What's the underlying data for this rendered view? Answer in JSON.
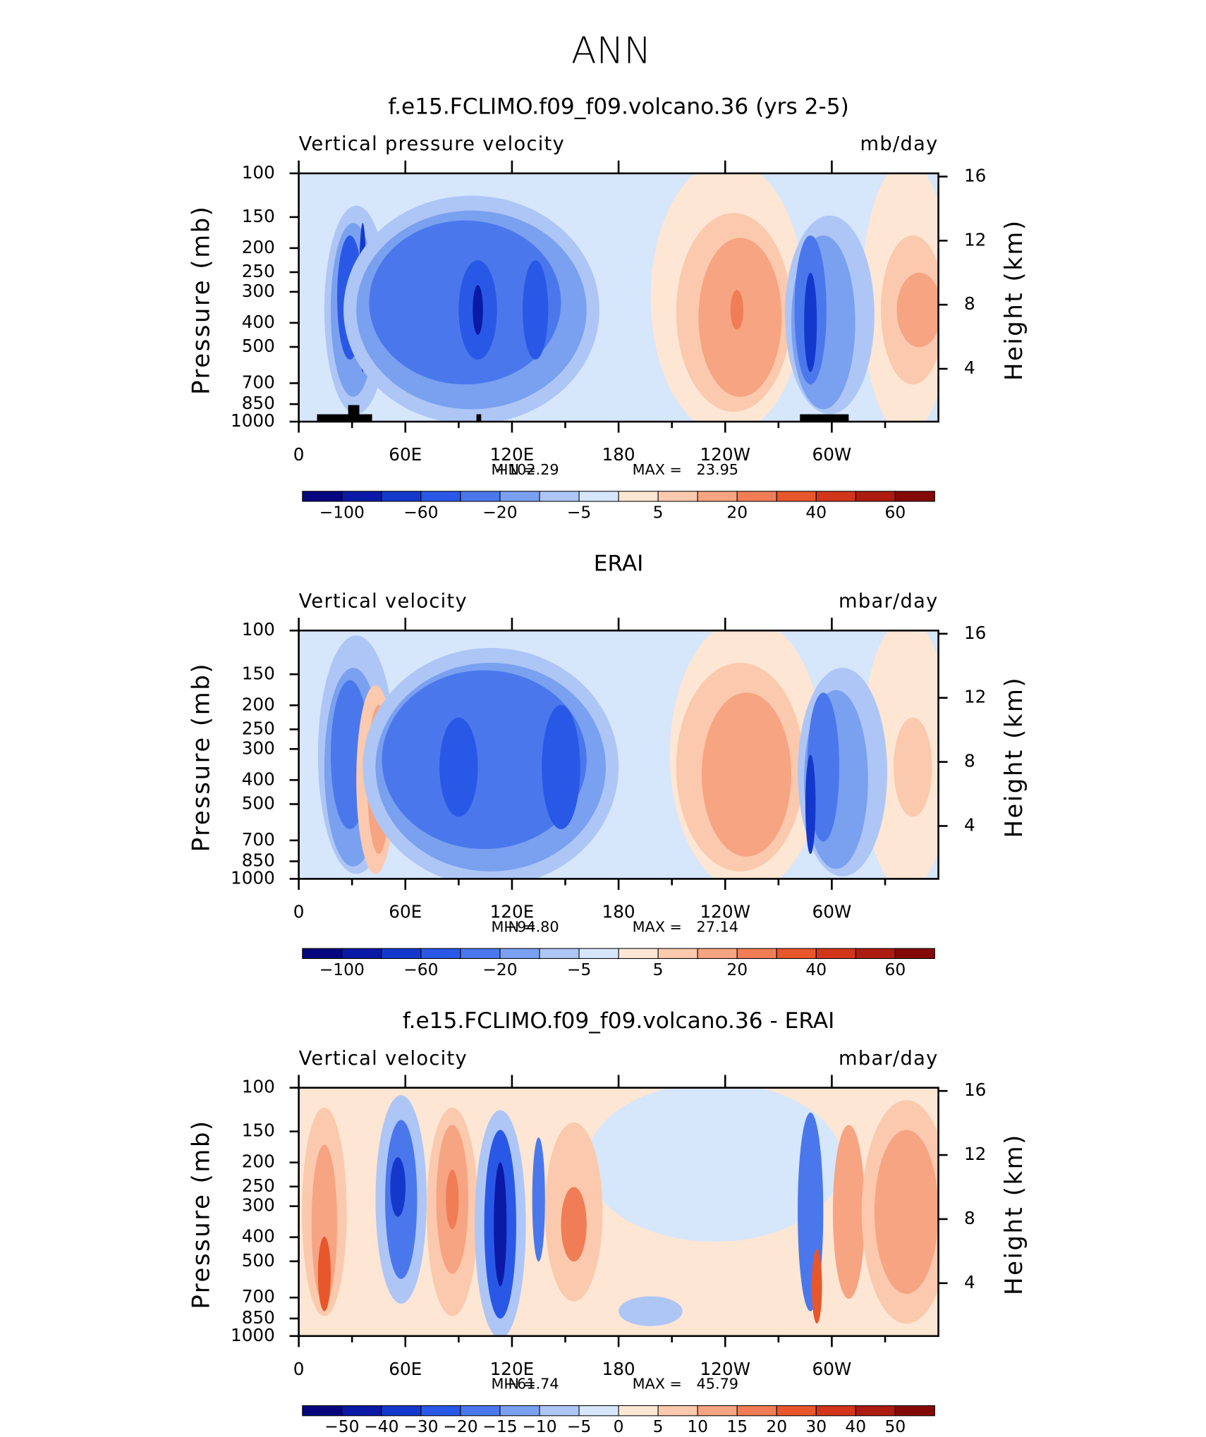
{
  "title": "ANN",
  "chart_data": [
    {
      "type": "contour",
      "title": "f.e15.FCLIMO.f09_f09.volcano.36 (yrs 2-5)",
      "subtitle_left": "Vertical pressure velocity",
      "subtitle_right": "mb/day",
      "ylabel": "Pressure (mb)",
      "y2label": "Height (km)",
      "xlim": [
        0,
        360
      ],
      "xticks": [
        0,
        {
          "value": 60,
          "label": "60E"
        },
        {
          "value": 120,
          "label": "120E"
        },
        180,
        {
          "value": 240,
          "label": "120W"
        },
        {
          "value": 300,
          "label": "60W"
        }
      ],
      "ylim": [
        1000,
        100
      ],
      "yscale": "log",
      "yticks": [
        100,
        150,
        200,
        250,
        300,
        400,
        500,
        700,
        850,
        1000
      ],
      "y2lim": [
        0.7,
        16.2
      ],
      "y2ticks": [
        16,
        12,
        8,
        4
      ],
      "stats_labels": [
        "MIN =",
        "MAX ="
      ],
      "min": {
        "value": -102.29,
        "label": "−102.29"
      },
      "max": 23.95,
      "colorbar": {
        "colors": [
          "#06067e",
          "#0a1aa6",
          "#1538cc",
          "#2a58e6",
          "#4a78ec",
          "#7aa0f0",
          "#aec6f6",
          "#d6e6fb",
          "#fde6d4",
          "#fbc9ad",
          "#f6a482",
          "#f07d56",
          "#e8562c",
          "#d2361a",
          "#ac1c10",
          "#840808"
        ],
        "ticks": [
          {
            "value": -100,
            "label": "−100"
          },
          null,
          {
            "value": -60,
            "label": "−60"
          },
          null,
          {
            "value": -20,
            "label": "−20"
          },
          null,
          {
            "value": -5,
            "label": "−5"
          },
          null,
          5,
          null,
          20,
          null,
          40,
          null,
          60
        ]
      }
    },
    {
      "type": "contour",
      "title": "ERAI",
      "subtitle_left": "Vertical velocity",
      "subtitle_right": "mbar/day",
      "ylabel": "Pressure (mb)",
      "y2label": "Height (km)",
      "xlim": [
        0,
        360
      ],
      "xticks": [
        0,
        {
          "value": 60,
          "label": "60E"
        },
        {
          "value": 120,
          "label": "120E"
        },
        180,
        {
          "value": 240,
          "label": "120W"
        },
        {
          "value": 300,
          "label": "60W"
        }
      ],
      "ylim": [
        1000,
        100
      ],
      "yscale": "log",
      "yticks": [
        100,
        150,
        200,
        250,
        300,
        400,
        500,
        700,
        850,
        1000
      ],
      "y2lim": [
        0.7,
        16.2
      ],
      "y2ticks": [
        16,
        12,
        8,
        4
      ],
      "stats_labels": [
        "MIN =",
        "MAX ="
      ],
      "min": {
        "value": -94.8,
        "label": "−94.80"
      },
      "max": 27.14,
      "colorbar": {
        "colors": [
          "#06067e",
          "#0a1aa6",
          "#1538cc",
          "#2a58e6",
          "#4a78ec",
          "#7aa0f0",
          "#aec6f6",
          "#d6e6fb",
          "#fde6d4",
          "#fbc9ad",
          "#f6a482",
          "#f07d56",
          "#e8562c",
          "#d2361a",
          "#ac1c10",
          "#840808"
        ],
        "ticks": [
          {
            "value": -100,
            "label": "−100"
          },
          null,
          {
            "value": -60,
            "label": "−60"
          },
          null,
          {
            "value": -20,
            "label": "−20"
          },
          null,
          {
            "value": -5,
            "label": "−5"
          },
          null,
          5,
          null,
          20,
          null,
          40,
          null,
          60
        ]
      }
    },
    {
      "type": "contour",
      "title": "f.e15.FCLIMO.f09_f09.volcano.36 - ERAI",
      "subtitle_left": "Vertical velocity",
      "subtitle_right": "mbar/day",
      "ylabel": "Pressure (mb)",
      "y2label": "Height (km)",
      "xlim": [
        0,
        360
      ],
      "xticks": [
        0,
        {
          "value": 60,
          "label": "60E"
        },
        {
          "value": 120,
          "label": "120E"
        },
        180,
        {
          "value": 240,
          "label": "120W"
        },
        {
          "value": 300,
          "label": "60W"
        }
      ],
      "ylim": [
        1000,
        100
      ],
      "yscale": "log",
      "yticks": [
        100,
        150,
        200,
        250,
        300,
        400,
        500,
        700,
        850,
        1000
      ],
      "y2lim": [
        0.7,
        16.2
      ],
      "y2ticks": [
        16,
        12,
        8,
        4
      ],
      "stats_labels": [
        "MIN =",
        "MAX ="
      ],
      "min": {
        "value": -61.74,
        "label": "−61.74"
      },
      "max": 45.79,
      "colorbar": {
        "colors": [
          "#06067e",
          "#0a1aa6",
          "#1538cc",
          "#2a58e6",
          "#4a78ec",
          "#7aa0f0",
          "#aec6f6",
          "#d6e6fb",
          "#fde6d4",
          "#fbc9ad",
          "#f6a482",
          "#f07d56",
          "#e8562c",
          "#d2361a",
          "#ac1c10",
          "#840808"
        ],
        "ticks": [
          {
            "value": -50,
            "label": "−50"
          },
          {
            "value": -40,
            "label": "−40"
          },
          {
            "value": -30,
            "label": "−30"
          },
          {
            "value": -20,
            "label": "−20"
          },
          {
            "value": -15,
            "label": "−15"
          },
          {
            "value": -10,
            "label": "−10"
          },
          {
            "value": -5,
            "label": "−5"
          },
          0,
          5,
          10,
          15,
          20,
          30,
          40,
          50
        ]
      }
    }
  ]
}
